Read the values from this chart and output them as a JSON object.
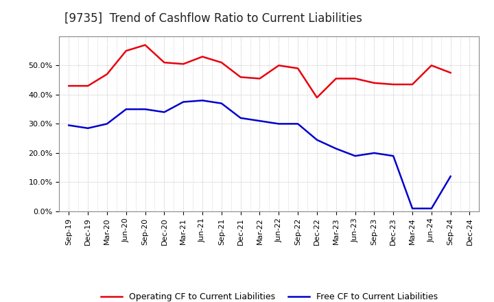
{
  "title": "[9735]  Trend of Cashflow Ratio to Current Liabilities",
  "x_labels": [
    "Sep-19",
    "Dec-19",
    "Mar-20",
    "Jun-20",
    "Sep-20",
    "Dec-20",
    "Mar-21",
    "Jun-21",
    "Sep-21",
    "Dec-21",
    "Mar-22",
    "Jun-22",
    "Sep-22",
    "Dec-22",
    "Mar-23",
    "Jun-23",
    "Sep-23",
    "Dec-23",
    "Mar-24",
    "Jun-24",
    "Sep-24",
    "Dec-24"
  ],
  "operating_cf": [
    0.43,
    0.43,
    0.47,
    0.55,
    0.57,
    0.51,
    0.505,
    0.53,
    0.51,
    0.46,
    0.455,
    0.5,
    0.49,
    0.39,
    0.455,
    0.455,
    0.44,
    0.435,
    0.435,
    0.5,
    0.475,
    null
  ],
  "free_cf": [
    0.295,
    0.285,
    0.3,
    0.35,
    0.35,
    0.34,
    0.375,
    0.38,
    0.37,
    0.32,
    0.31,
    0.3,
    0.3,
    0.245,
    0.215,
    0.19,
    0.2,
    0.19,
    0.01,
    0.01,
    0.12,
    null
  ],
  "operating_cf_color": "#e8000d",
  "free_cf_color": "#0000cd",
  "background_color": "#ffffff",
  "plot_bg_color": "#ffffff",
  "grid_color": "#aaaaaa",
  "ylim": [
    0.0,
    0.6
  ],
  "yticks": [
    0.0,
    0.1,
    0.2,
    0.3,
    0.4,
    0.5
  ],
  "legend_op": "Operating CF to Current Liabilities",
  "legend_free": "Free CF to Current Liabilities",
  "title_fontsize": 12,
  "label_fontsize": 8,
  "legend_fontsize": 9,
  "linewidth": 1.8
}
